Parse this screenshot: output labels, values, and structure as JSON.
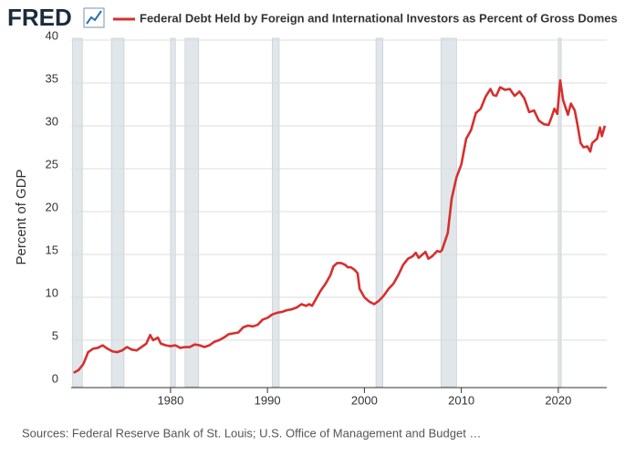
{
  "chart_data": {
    "type": "line",
    "logo": "FRED",
    "y_label": "Percent of GDP",
    "source": "Sources: Federal Reserve Bank of St. Louis; U.S. Office of Management and Budget …",
    "xlim": [
      1969.75,
      2025
    ],
    "xticks": [
      1980,
      1990,
      2000,
      2010,
      2020
    ],
    "ylim": [
      0,
      40
    ],
    "yticks": [
      0,
      5,
      10,
      15,
      20,
      25,
      30,
      35,
      40
    ],
    "grid": true,
    "legend": "top",
    "recessions": [
      [
        1969.9,
        1970.9
      ],
      [
        1973.9,
        1975.2
      ],
      [
        1980.0,
        1980.5
      ],
      [
        1981.5,
        1982.9
      ],
      [
        1990.5,
        1991.2
      ],
      [
        2001.2,
        2001.9
      ],
      [
        2007.9,
        2009.5
      ],
      [
        2020.0,
        2020.3
      ]
    ],
    "recession_color": "#e1e6ea",
    "x": [
      1970.0,
      1970.5,
      1971.0,
      1971.5,
      1972.0,
      1972.5,
      1973.0,
      1973.5,
      1974.0,
      1974.5,
      1975.0,
      1975.5,
      1976.0,
      1976.5,
      1977.0,
      1977.5,
      1977.9,
      1978.2,
      1978.7,
      1979.0,
      1979.5,
      1980.0,
      1980.5,
      1981.0,
      1981.5,
      1982.0,
      1982.5,
      1983.0,
      1983.5,
      1984.0,
      1984.5,
      1985.0,
      1985.5,
      1986.0,
      1986.5,
      1987.0,
      1987.5,
      1988.0,
      1988.5,
      1989.0,
      1989.5,
      1990.0,
      1990.5,
      1991.0,
      1991.5,
      1992.0,
      1992.5,
      1993.0,
      1993.5,
      1994.0,
      1994.3,
      1994.6,
      1995.0,
      1995.5,
      1996.0,
      1996.5,
      1996.8,
      1997.2,
      1997.6,
      1998.0,
      1998.3,
      1998.6,
      1999.0,
      1999.3,
      1999.5,
      2000.0,
      2000.5,
      2001.0,
      2001.5,
      2002.0,
      2002.5,
      2003.0,
      2003.5,
      2004.0,
      2004.5,
      2005.0,
      2005.3,
      2005.6,
      2006.0,
      2006.3,
      2006.6,
      2007.0,
      2007.5,
      2007.8,
      2008.0,
      2008.3,
      2008.6,
      2009.0,
      2009.5,
      2010.0,
      2010.5,
      2011.0,
      2011.5,
      2012.0,
      2012.5,
      2013.0,
      2013.3,
      2013.6,
      2014.0,
      2014.5,
      2015.0,
      2015.5,
      2016.0,
      2016.5,
      2017.0,
      2017.5,
      2018.0,
      2018.5,
      2019.0,
      2019.3,
      2019.6,
      2019.9,
      2020.2,
      2020.5,
      2021.0,
      2021.3,
      2021.7,
      2022.0,
      2022.3,
      2022.6,
      2023.0,
      2023.3,
      2023.5,
      2024.0,
      2024.3,
      2024.5,
      2024.8
    ],
    "series": [
      {
        "name": "Federal Debt Held by Foreign and International Investors as Percent of Gross Domes",
        "color": "#d62f2f",
        "values": [
          1.2,
          1.5,
          2.2,
          3.6,
          4.0,
          4.1,
          4.4,
          4.0,
          3.7,
          3.6,
          3.8,
          4.2,
          3.9,
          3.8,
          4.2,
          4.6,
          5.6,
          5.0,
          5.3,
          4.6,
          4.4,
          4.3,
          4.4,
          4.1,
          4.2,
          4.2,
          4.5,
          4.4,
          4.2,
          4.4,
          4.8,
          5.0,
          5.3,
          5.7,
          5.8,
          5.9,
          6.5,
          6.7,
          6.6,
          6.8,
          7.4,
          7.6,
          8.0,
          8.2,
          8.3,
          8.5,
          8.6,
          8.8,
          9.2,
          9.0,
          9.2,
          9.0,
          9.8,
          10.8,
          11.6,
          12.6,
          13.6,
          14.0,
          14.0,
          13.8,
          13.5,
          13.5,
          13.2,
          12.8,
          11.0,
          10.0,
          9.5,
          9.2,
          9.6,
          10.2,
          11.0,
          11.6,
          12.6,
          13.8,
          14.5,
          14.8,
          15.2,
          14.6,
          15.0,
          15.3,
          14.5,
          14.8,
          15.4,
          15.3,
          15.5,
          16.5,
          17.5,
          21.5,
          24.0,
          25.5,
          28.5,
          29.5,
          31.5,
          32.0,
          33.4,
          34.3,
          33.6,
          33.5,
          34.5,
          34.2,
          34.3,
          33.5,
          34.0,
          33.2,
          31.6,
          31.8,
          30.6,
          30.2,
          30.1,
          31.0,
          32.0,
          31.4,
          35.3,
          33.0,
          31.3,
          32.6,
          31.8,
          30.0,
          28.0,
          27.5,
          27.6,
          27.0,
          28.0,
          28.5,
          29.8,
          28.8,
          30.0
        ]
      }
    ]
  }
}
